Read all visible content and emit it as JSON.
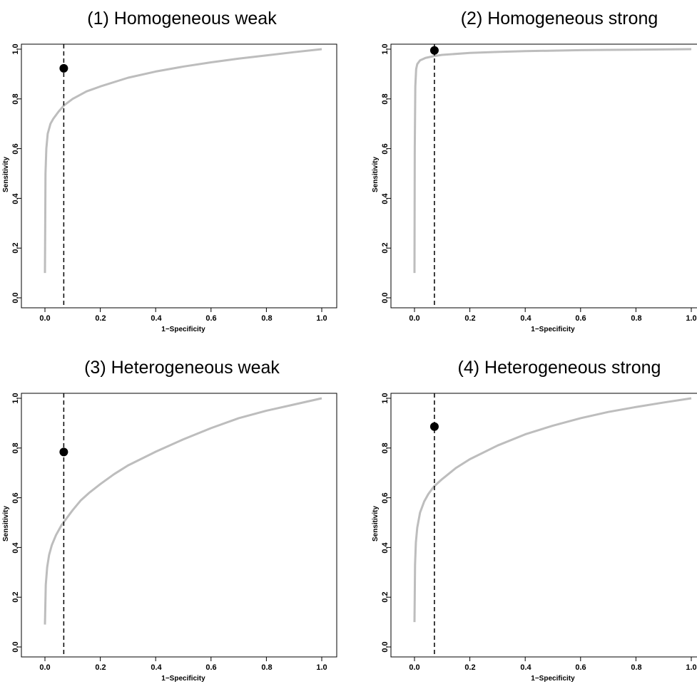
{
  "chart_data": [
    {
      "type": "line",
      "title": "(1) Homogeneous weak",
      "xlabel": "1−Specificity",
      "ylabel": "Sensitivity",
      "xlim": [
        0,
        1
      ],
      "ylim": [
        0,
        1
      ],
      "xticks": [
        "0.0",
        "0.2",
        "0.4",
        "0.6",
        "0.8",
        "1.0"
      ],
      "yticks": [
        "0.0",
        "0.2",
        "0.4",
        "0.6",
        "0.8",
        "1.0"
      ],
      "grid": false,
      "series": [
        {
          "type": "line",
          "color": "#bdbdbd",
          "x": [
            0.0,
            0.002,
            0.005,
            0.01,
            0.02,
            0.03,
            0.05,
            0.07,
            0.1,
            0.15,
            0.2,
            0.3,
            0.4,
            0.5,
            0.6,
            0.7,
            0.8,
            0.9,
            1.0
          ],
          "y": [
            0.1,
            0.5,
            0.6,
            0.66,
            0.7,
            0.72,
            0.75,
            0.775,
            0.8,
            0.83,
            0.85,
            0.885,
            0.91,
            0.93,
            0.947,
            0.962,
            0.975,
            0.988,
            1.0
          ]
        },
        {
          "type": "point",
          "color": "#000000",
          "x": 0.068,
          "y": 0.923
        },
        {
          "type": "vline",
          "color": "#000000",
          "x": 0.068,
          "style": "dashed"
        }
      ]
    },
    {
      "type": "line",
      "title": "(2) Homogeneous strong",
      "xlabel": "1−Specificity",
      "ylabel": "Sensitivity",
      "xlim": [
        0,
        1
      ],
      "ylim": [
        0,
        1
      ],
      "xticks": [
        "0.0",
        "0.2",
        "0.4",
        "0.6",
        "0.8",
        "1.0"
      ],
      "yticks": [
        "0.0",
        "0.2",
        "0.4",
        "0.6",
        "0.8",
        "1.0"
      ],
      "grid": false,
      "series": [
        {
          "type": "line",
          "color": "#bdbdbd",
          "x": [
            0.0,
            0.001,
            0.003,
            0.006,
            0.01,
            0.02,
            0.04,
            0.07,
            0.1,
            0.2,
            0.3,
            0.4,
            0.5,
            0.6,
            0.7,
            0.8,
            0.9,
            1.0
          ],
          "y": [
            0.1,
            0.6,
            0.85,
            0.92,
            0.94,
            0.955,
            0.965,
            0.972,
            0.977,
            0.985,
            0.989,
            0.992,
            0.994,
            0.996,
            0.997,
            0.998,
            0.999,
            1.0
          ]
        },
        {
          "type": "point",
          "color": "#000000",
          "x": 0.072,
          "y": 0.995
        },
        {
          "type": "vline",
          "color": "#000000",
          "x": 0.072,
          "style": "dashed"
        }
      ]
    },
    {
      "type": "line",
      "title": "(3) Heterogeneous weak",
      "xlabel": "1−Specificity",
      "ylabel": "Sensitivity",
      "xlim": [
        0,
        1
      ],
      "ylim": [
        0,
        1
      ],
      "xticks": [
        "0.0",
        "0.2",
        "0.4",
        "0.6",
        "0.8",
        "1.0"
      ],
      "yticks": [
        "0.0",
        "0.2",
        "0.4",
        "0.6",
        "0.8",
        "1.0"
      ],
      "grid": false,
      "series": [
        {
          "type": "line",
          "color": "#bdbdbd",
          "x": [
            0.0,
            0.003,
            0.008,
            0.015,
            0.025,
            0.04,
            0.06,
            0.08,
            0.1,
            0.13,
            0.16,
            0.2,
            0.25,
            0.3,
            0.4,
            0.5,
            0.6,
            0.7,
            0.8,
            0.9,
            1.0
          ],
          "y": [
            0.09,
            0.25,
            0.32,
            0.37,
            0.41,
            0.45,
            0.49,
            0.52,
            0.55,
            0.59,
            0.62,
            0.655,
            0.695,
            0.73,
            0.785,
            0.835,
            0.88,
            0.92,
            0.95,
            0.975,
            1.0
          ]
        },
        {
          "type": "point",
          "color": "#000000",
          "x": 0.068,
          "y": 0.784
        },
        {
          "type": "vline",
          "color": "#000000",
          "x": 0.068,
          "style": "dashed"
        }
      ]
    },
    {
      "type": "line",
      "title": "(4) Heterogeneous strong",
      "xlabel": "1−Specificity",
      "ylabel": "Sensitivity",
      "xlim": [
        0,
        1
      ],
      "ylim": [
        0,
        1
      ],
      "xticks": [
        "0.0",
        "0.2",
        "0.4",
        "0.6",
        "0.8",
        "1.0"
      ],
      "yticks": [
        "0.0",
        "0.2",
        "0.4",
        "0.6",
        "0.8",
        "1.0"
      ],
      "grid": false,
      "series": [
        {
          "type": "line",
          "color": "#bdbdbd",
          "x": [
            0.0,
            0.002,
            0.005,
            0.01,
            0.02,
            0.035,
            0.05,
            0.07,
            0.1,
            0.15,
            0.2,
            0.3,
            0.4,
            0.5,
            0.6,
            0.7,
            0.8,
            0.9,
            1.0
          ],
          "y": [
            0.1,
            0.33,
            0.42,
            0.48,
            0.54,
            0.585,
            0.615,
            0.645,
            0.675,
            0.72,
            0.755,
            0.81,
            0.855,
            0.89,
            0.92,
            0.945,
            0.965,
            0.983,
            1.0
          ]
        },
        {
          "type": "point",
          "color": "#000000",
          "x": 0.072,
          "y": 0.886
        },
        {
          "type": "vline",
          "color": "#000000",
          "x": 0.072,
          "style": "dashed"
        }
      ]
    }
  ]
}
